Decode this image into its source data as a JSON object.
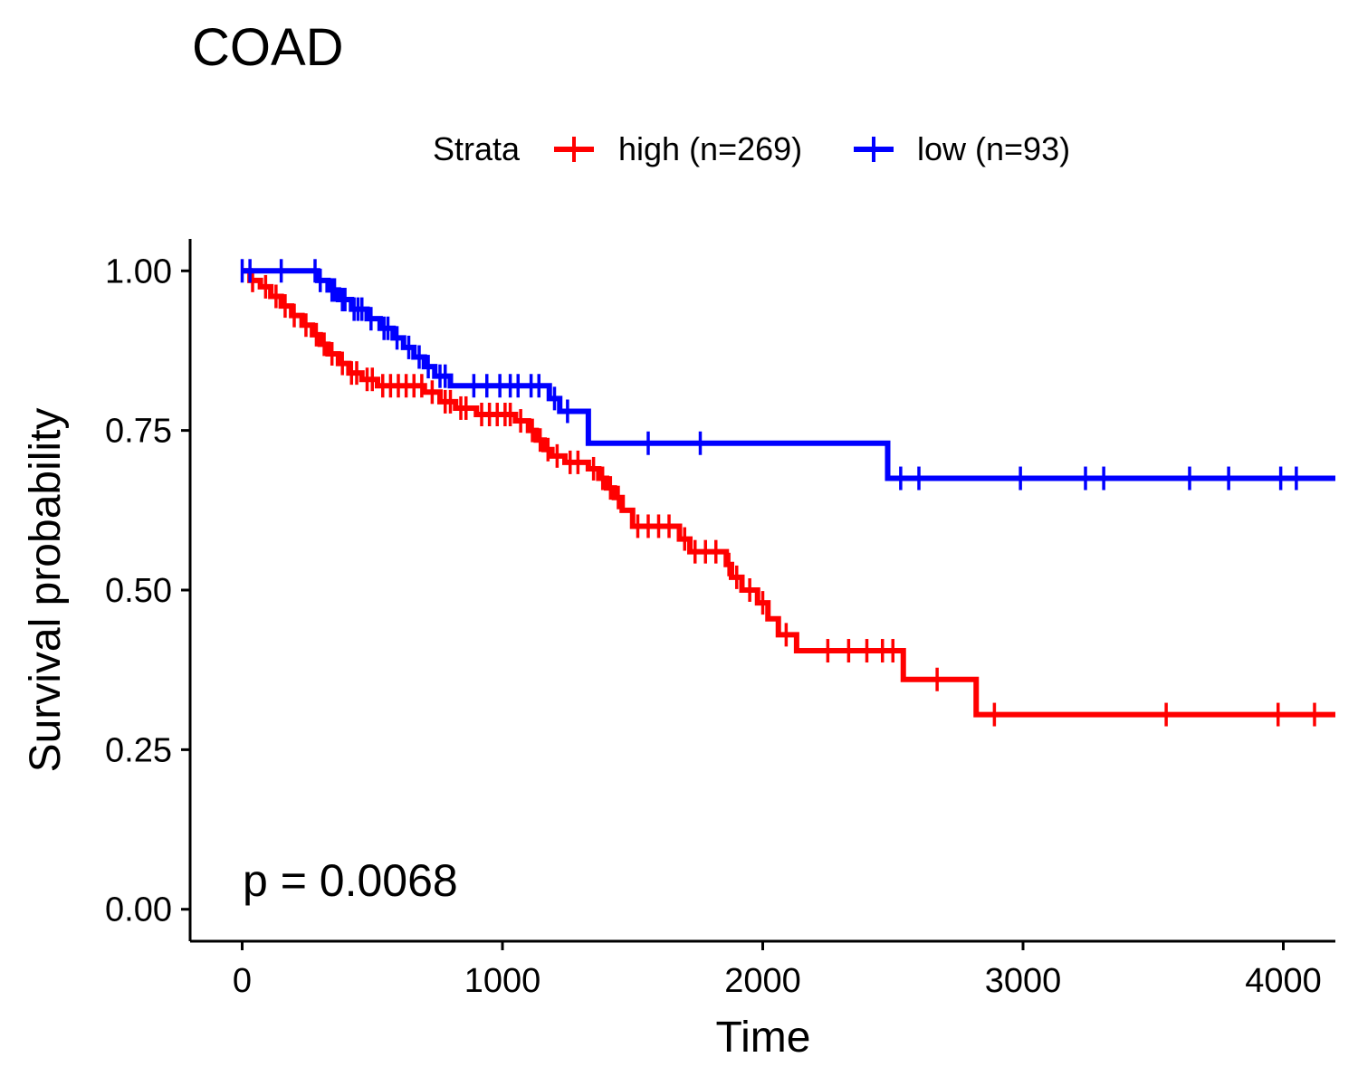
{
  "chart_data": {
    "type": "line",
    "title": "COAD",
    "xlabel": "Time",
    "ylabel": "Survival probability",
    "xlim": [
      -200,
      4200
    ],
    "ylim": [
      -0.05,
      1.05
    ],
    "x_ticks": [
      0,
      1000,
      2000,
      3000,
      4000
    ],
    "x_tick_labels": [
      "0",
      "1000",
      "2000",
      "3000",
      "4000"
    ],
    "y_ticks": [
      0,
      0.25,
      0.5,
      0.75,
      1.0
    ],
    "y_tick_labels": [
      "0.00",
      "0.25",
      "0.50",
      "0.75",
      "1.00"
    ],
    "grid": false,
    "legend": {
      "title": "Strata",
      "position": "top"
    },
    "annotation": "p = 0.0068",
    "series": [
      {
        "name": "high (n=269)",
        "color": "#ff0000",
        "steps": [
          [
            0,
            1.0
          ],
          [
            30,
            0.985
          ],
          [
            70,
            0.975
          ],
          [
            110,
            0.96
          ],
          [
            150,
            0.945
          ],
          [
            190,
            0.93
          ],
          [
            230,
            0.915
          ],
          [
            270,
            0.9
          ],
          [
            300,
            0.885
          ],
          [
            330,
            0.87
          ],
          [
            370,
            0.855
          ],
          [
            410,
            0.84
          ],
          [
            460,
            0.83
          ],
          [
            520,
            0.82
          ],
          [
            700,
            0.81
          ],
          [
            760,
            0.795
          ],
          [
            820,
            0.785
          ],
          [
            900,
            0.775
          ],
          [
            1050,
            0.765
          ],
          [
            1100,
            0.75
          ],
          [
            1130,
            0.735
          ],
          [
            1160,
            0.72
          ],
          [
            1190,
            0.71
          ],
          [
            1240,
            0.7
          ],
          [
            1330,
            0.69
          ],
          [
            1370,
            0.675
          ],
          [
            1400,
            0.66
          ],
          [
            1430,
            0.645
          ],
          [
            1460,
            0.625
          ],
          [
            1500,
            0.6
          ],
          [
            1680,
            0.58
          ],
          [
            1720,
            0.56
          ],
          [
            1860,
            0.54
          ],
          [
            1880,
            0.52
          ],
          [
            1920,
            0.5
          ],
          [
            1980,
            0.48
          ],
          [
            2020,
            0.455
          ],
          [
            2060,
            0.43
          ],
          [
            2130,
            0.405
          ],
          [
            2540,
            0.36
          ],
          [
            2820,
            0.305
          ]
        ],
        "end_x": 4200,
        "censored": [
          [
            40,
            0.985
          ],
          [
            90,
            0.975
          ],
          [
            130,
            0.96
          ],
          [
            165,
            0.945
          ],
          [
            200,
            0.93
          ],
          [
            245,
            0.915
          ],
          [
            285,
            0.9
          ],
          [
            315,
            0.885
          ],
          [
            345,
            0.87
          ],
          [
            385,
            0.855
          ],
          [
            420,
            0.84
          ],
          [
            440,
            0.84
          ],
          [
            480,
            0.83
          ],
          [
            500,
            0.83
          ],
          [
            540,
            0.82
          ],
          [
            570,
            0.82
          ],
          [
            600,
            0.82
          ],
          [
            630,
            0.82
          ],
          [
            660,
            0.82
          ],
          [
            690,
            0.82
          ],
          [
            730,
            0.81
          ],
          [
            780,
            0.795
          ],
          [
            800,
            0.795
          ],
          [
            840,
            0.785
          ],
          [
            860,
            0.785
          ],
          [
            920,
            0.775
          ],
          [
            950,
            0.775
          ],
          [
            980,
            0.775
          ],
          [
            1010,
            0.775
          ],
          [
            1030,
            0.775
          ],
          [
            1070,
            0.765
          ],
          [
            1115,
            0.75
          ],
          [
            1145,
            0.735
          ],
          [
            1175,
            0.72
          ],
          [
            1210,
            0.71
          ],
          [
            1260,
            0.7
          ],
          [
            1290,
            0.7
          ],
          [
            1350,
            0.69
          ],
          [
            1385,
            0.675
          ],
          [
            1415,
            0.66
          ],
          [
            1445,
            0.645
          ],
          [
            1520,
            0.6
          ],
          [
            1560,
            0.6
          ],
          [
            1600,
            0.6
          ],
          [
            1640,
            0.6
          ],
          [
            1700,
            0.58
          ],
          [
            1740,
            0.56
          ],
          [
            1780,
            0.56
          ],
          [
            1820,
            0.56
          ],
          [
            1870,
            0.54
          ],
          [
            1900,
            0.52
          ],
          [
            1950,
            0.5
          ],
          [
            2000,
            0.48
          ],
          [
            2090,
            0.43
          ],
          [
            2250,
            0.405
          ],
          [
            2330,
            0.405
          ],
          [
            2400,
            0.405
          ],
          [
            2460,
            0.405
          ],
          [
            2500,
            0.405
          ],
          [
            2670,
            0.36
          ],
          [
            2890,
            0.305
          ],
          [
            3550,
            0.305
          ],
          [
            3980,
            0.305
          ],
          [
            4120,
            0.305
          ]
        ]
      },
      {
        "name": "low (n=93)",
        "color": "#0000ff",
        "steps": [
          [
            0,
            1.0
          ],
          [
            290,
            0.985
          ],
          [
            330,
            0.97
          ],
          [
            370,
            0.955
          ],
          [
            420,
            0.94
          ],
          [
            480,
            0.925
          ],
          [
            530,
            0.91
          ],
          [
            580,
            0.895
          ],
          [
            620,
            0.88
          ],
          [
            660,
            0.865
          ],
          [
            700,
            0.85
          ],
          [
            740,
            0.835
          ],
          [
            800,
            0.82
          ],
          [
            870,
            0.82
          ],
          [
            1180,
            0.8
          ],
          [
            1220,
            0.78
          ],
          [
            1330,
            0.73
          ],
          [
            2480,
            0.675
          ]
        ],
        "end_x": 4200,
        "censored": [
          [
            0,
            1.0
          ],
          [
            30,
            1.0
          ],
          [
            150,
            1.0
          ],
          [
            280,
            1.0
          ],
          [
            300,
            0.985
          ],
          [
            345,
            0.97
          ],
          [
            355,
            0.97
          ],
          [
            385,
            0.955
          ],
          [
            395,
            0.955
          ],
          [
            430,
            0.94
          ],
          [
            445,
            0.94
          ],
          [
            460,
            0.94
          ],
          [
            495,
            0.925
          ],
          [
            545,
            0.91
          ],
          [
            560,
            0.91
          ],
          [
            595,
            0.895
          ],
          [
            640,
            0.88
          ],
          [
            680,
            0.865
          ],
          [
            715,
            0.85
          ],
          [
            760,
            0.835
          ],
          [
            780,
            0.835
          ],
          [
            890,
            0.82
          ],
          [
            940,
            0.82
          ],
          [
            990,
            0.82
          ],
          [
            1030,
            0.82
          ],
          [
            1060,
            0.82
          ],
          [
            1110,
            0.82
          ],
          [
            1140,
            0.82
          ],
          [
            1200,
            0.8
          ],
          [
            1250,
            0.78
          ],
          [
            1560,
            0.73
          ],
          [
            1760,
            0.73
          ],
          [
            2530,
            0.675
          ],
          [
            2600,
            0.675
          ],
          [
            2990,
            0.675
          ],
          [
            3240,
            0.675
          ],
          [
            3310,
            0.675
          ],
          [
            3640,
            0.675
          ],
          [
            3790,
            0.675
          ],
          [
            3990,
            0.675
          ],
          [
            4050,
            0.675
          ]
        ]
      }
    ]
  }
}
